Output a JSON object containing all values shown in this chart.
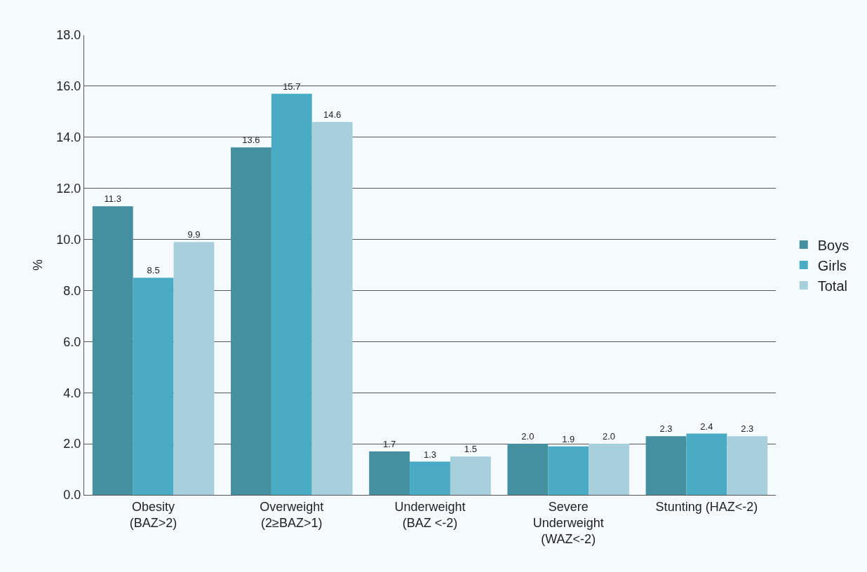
{
  "chart_data": {
    "type": "bar",
    "ylabel": "%",
    "categories": [
      "Obesity\n(BAZ>2)",
      "Overweight\n(2≥BAZ>1)",
      "Underweight\n(BAZ <-2)",
      "Severe\nUnderweight\n(WAZ<-2)",
      "Stunting (HAZ<-2)"
    ],
    "series": [
      {
        "name": "Boys",
        "color": "#4490a1",
        "values": [
          11.3,
          13.6,
          1.7,
          2.0,
          2.3
        ],
        "value_labels": [
          "11.3",
          "13.6",
          "1.7",
          "2.0",
          "2.3"
        ]
      },
      {
        "name": "Girls",
        "color": "#4aabc5",
        "values": [
          8.5,
          15.7,
          1.3,
          1.9,
          2.4
        ],
        "value_labels": [
          "8.5",
          "15.7",
          "1.3",
          "1.9",
          "2.4"
        ]
      },
      {
        "name": "Total",
        "color": "#a8cfdc",
        "values": [
          9.9,
          14.6,
          1.5,
          2.0,
          2.3
        ],
        "value_labels": [
          "9.9",
          "14.6",
          "1.5",
          "2.0",
          "2.3"
        ]
      }
    ],
    "ylim": [
      0,
      18
    ],
    "yticks": [
      {
        "value": 0,
        "label": "0.0"
      },
      {
        "value": 2,
        "label": "2.0"
      },
      {
        "value": 4,
        "label": "4.0"
      },
      {
        "value": 6,
        "label": "6.0"
      },
      {
        "value": 8,
        "label": "8.0"
      },
      {
        "value": 10,
        "label": "10.0"
      },
      {
        "value": 12,
        "label": "12.0"
      },
      {
        "value": 14,
        "label": "14.0"
      },
      {
        "value": 16,
        "label": "16.0"
      },
      {
        "value": 18,
        "label": "18.0"
      }
    ],
    "grid": "y",
    "legend": "right"
  }
}
